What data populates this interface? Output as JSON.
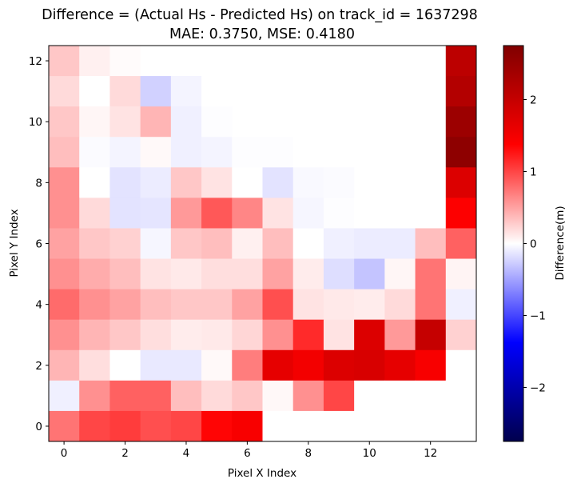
{
  "chart_data": {
    "type": "heatmap",
    "title": "Difference = (Actual Hs - Predicted Hs) on track_id = 1637298",
    "subtitle": "MAE: 0.3750, MSE: 0.4180",
    "xlabel": "Pixel X Index",
    "ylabel": "Pixel Y Index",
    "xlim": [
      -0.5,
      13.5
    ],
    "ylim": [
      -0.5,
      12.5
    ],
    "x_ticks": [
      "0",
      "2",
      "4",
      "6",
      "8",
      "10",
      "12"
    ],
    "y_ticks": [
      "0",
      "2",
      "4",
      "6",
      "8",
      "10",
      "12"
    ],
    "colormap": "seismic",
    "vmin": -2.75,
    "vmax": 2.75,
    "colorbar": {
      "label": "Difference(m)",
      "ticks": [
        "−2",
        "−1",
        "0",
        "1",
        "2"
      ],
      "tick_values": [
        -2,
        -1,
        0,
        1,
        2
      ]
    },
    "grid": false,
    "rows_y_descending": [
      [
        0.3,
        0.08,
        0.02,
        0.0,
        0.0,
        0.0,
        0.0,
        0.0,
        0.0,
        0.0,
        0.0,
        0.0,
        0.0,
        2.1
      ],
      [
        0.2,
        0.0,
        0.2,
        -0.25,
        -0.06,
        0.0,
        0.0,
        0.0,
        0.0,
        0.0,
        0.0,
        0.0,
        0.0,
        2.2
      ],
      [
        0.3,
        0.05,
        0.15,
        0.4,
        -0.08,
        -0.01,
        0.0,
        0.0,
        0.0,
        0.0,
        0.0,
        0.0,
        0.0,
        2.45
      ],
      [
        0.35,
        -0.02,
        -0.06,
        0.03,
        -0.08,
        -0.06,
        -0.01,
        -0.01,
        0.0,
        0.0,
        0.0,
        0.0,
        0.0,
        2.6
      ],
      [
        0.6,
        0.0,
        -0.15,
        -0.1,
        0.3,
        0.15,
        0.0,
        -0.15,
        -0.03,
        -0.02,
        0.0,
        0.0,
        0.0,
        1.75
      ],
      [
        0.6,
        0.2,
        -0.15,
        -0.14,
        0.55,
        0.9,
        0.65,
        0.15,
        -0.05,
        -0.01,
        0.0,
        0.0,
        0.0,
        1.4
      ],
      [
        0.5,
        0.3,
        0.25,
        -0.05,
        0.3,
        0.35,
        0.08,
        0.35,
        0.0,
        -0.08,
        -0.1,
        -0.1,
        0.35,
        0.85
      ],
      [
        0.6,
        0.45,
        0.35,
        0.15,
        0.12,
        0.18,
        0.18,
        0.5,
        0.1,
        -0.18,
        -0.32,
        0.05,
        0.75,
        0.06
      ],
      [
        0.8,
        0.6,
        0.5,
        0.35,
        0.3,
        0.3,
        0.5,
        0.95,
        0.15,
        0.12,
        0.1,
        0.2,
        0.75,
        -0.08
      ],
      [
        0.6,
        0.4,
        0.3,
        0.18,
        0.1,
        0.12,
        0.22,
        0.6,
        1.15,
        0.15,
        1.75,
        0.55,
        2.0,
        0.25
      ],
      [
        0.4,
        0.18,
        0.0,
        -0.12,
        -0.12,
        0.03,
        0.7,
        1.65,
        1.5,
        1.75,
        1.8,
        1.65,
        1.45,
        0.0
      ],
      [
        -0.08,
        0.6,
        0.85,
        0.85,
        0.35,
        0.2,
        0.3,
        0.04,
        0.6,
        1.0,
        0.0,
        0.0,
        0.0,
        0.0
      ],
      [
        0.75,
        1.0,
        1.05,
        0.95,
        1.0,
        1.35,
        1.45,
        0.0,
        0.0,
        0.0,
        0.0,
        0.0,
        0.0,
        0.0
      ]
    ]
  }
}
